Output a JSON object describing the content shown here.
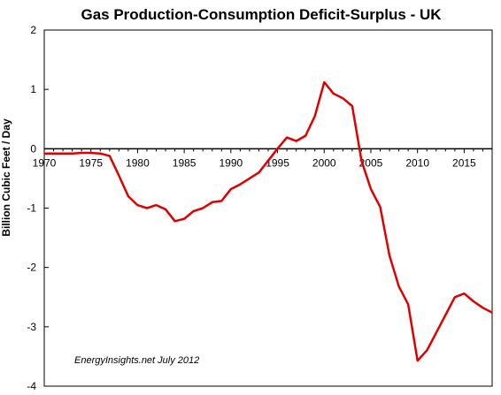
{
  "chart_data": {
    "type": "line",
    "title": "Gas Production-Consumption  Deficit-Surplus - UK",
    "xlabel": "",
    "ylabel": "Billion Cubic Feet / Day",
    "xlim": [
      1970,
      2018
    ],
    "ylim": [
      -4,
      2
    ],
    "x_ticks": [
      1970,
      1975,
      1980,
      1985,
      1990,
      1995,
      2000,
      2005,
      2010,
      2015
    ],
    "y_ticks": [
      2,
      1,
      0,
      -1,
      -2,
      -3,
      -4
    ],
    "grid": false,
    "legend": "none",
    "annotation": "EnergyInsights.net July 2012",
    "series": [
      {
        "color": "#e00000",
        "x": [
          1970,
          1971,
          1972,
          1973,
          1974,
          1975,
          1976,
          1977,
          1978,
          1979,
          1980,
          1981,
          1982,
          1983,
          1984,
          1985,
          1986,
          1987,
          1988,
          1989,
          1990,
          1991,
          1992,
          1993,
          1994,
          1995,
          1996,
          1997,
          1998,
          1999,
          2000,
          2001,
          2002,
          2003,
          2004,
          2005,
          2006,
          2007,
          2008,
          2009,
          2010,
          2011,
          2012,
          2013,
          2014,
          2015,
          2016,
          2017,
          2018
        ],
        "y": [
          -0.08,
          -0.08,
          -0.08,
          -0.08,
          -0.07,
          -0.07,
          -0.08,
          -0.12,
          -0.45,
          -0.8,
          -0.95,
          -1.0,
          -0.95,
          -1.02,
          -1.22,
          -1.18,
          -1.05,
          -1.0,
          -0.9,
          -0.88,
          -0.68,
          -0.6,
          -0.5,
          -0.4,
          -0.2,
          0.0,
          0.19,
          0.13,
          0.22,
          0.55,
          1.12,
          0.93,
          0.85,
          0.72,
          -0.2,
          -0.68,
          -0.98,
          -1.8,
          -2.32,
          -2.62,
          -3.57,
          -3.4,
          -3.1,
          -2.8,
          -2.5,
          -2.44,
          -2.57,
          -2.68,
          -2.76
        ]
      }
    ]
  }
}
